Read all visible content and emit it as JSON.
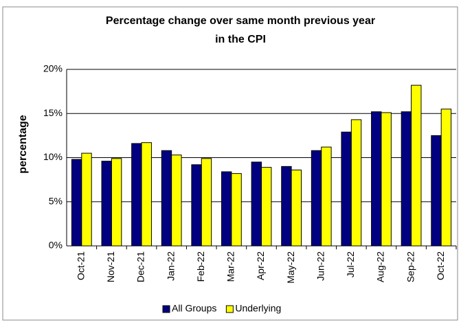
{
  "chart_data": {
    "type": "bar",
    "title": "Percentage change  over same month previous year",
    "subtitle": "in the CPI",
    "y_label": "percentage",
    "categories": [
      "Oct-21",
      "Nov-21",
      "Dec-21",
      "Jan-22",
      "Feb-22",
      "Mar-22",
      "Apr-22",
      "May-22",
      "Jun-22",
      "Jul-22",
      "Aug-22",
      "Sep-22",
      "Oct-22"
    ],
    "series": [
      {
        "name": "All Groups",
        "color": "#000080",
        "values": [
          9.8,
          9.6,
          11.6,
          10.8,
          9.2,
          8.4,
          9.5,
          9.0,
          10.8,
          12.9,
          15.2,
          15.2,
          12.5
        ]
      },
      {
        "name": "Underlying",
        "color": "#ffff00",
        "values": [
          10.5,
          9.9,
          11.7,
          10.3,
          9.9,
          8.2,
          8.9,
          8.6,
          11.2,
          14.3,
          15.1,
          18.2,
          15.5
        ]
      }
    ],
    "ylim": [
      0,
      20
    ],
    "yticks": [
      {
        "value": 0,
        "label": "0%"
      },
      {
        "value": 5,
        "label": "5%"
      },
      {
        "value": 10,
        "label": "10%"
      },
      {
        "value": 15,
        "label": "15%"
      },
      {
        "value": 20,
        "label": "20%"
      }
    ],
    "grid": true,
    "legend": "bottom"
  }
}
